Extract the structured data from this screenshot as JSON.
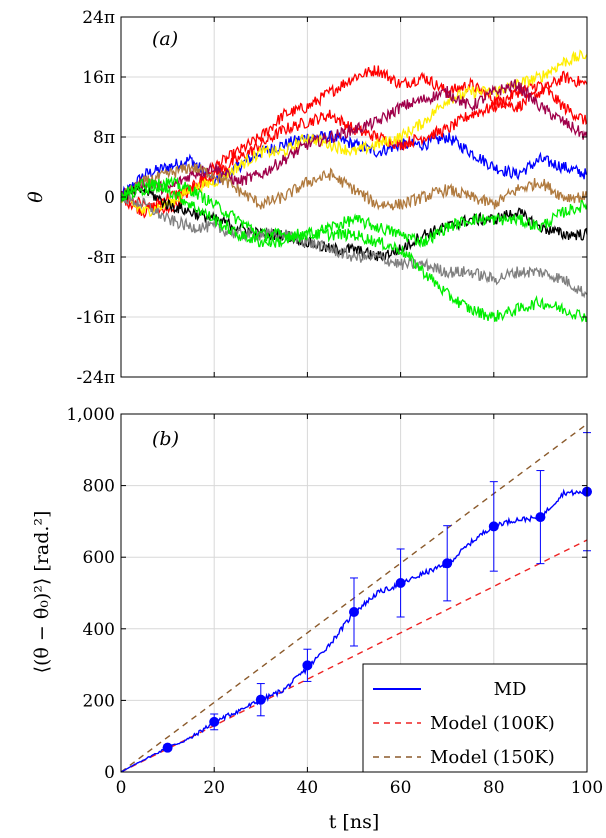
{
  "chart_data": [
    {
      "type": "line",
      "panel_label": "(a)",
      "xlabel": "",
      "ylabel": "θ",
      "xlim": [
        0,
        100
      ],
      "ylim_pi": [
        -24,
        24
      ],
      "grid": true,
      "yticks": [
        "24π",
        "16π",
        "8π",
        "0",
        "-8π",
        "-16π",
        "-24π"
      ],
      "series": [
        {
          "color": "#0000ff",
          "x": [
            0,
            5,
            10,
            15,
            20,
            25,
            30,
            35,
            40,
            45,
            50,
            55,
            60,
            65,
            70,
            75,
            80,
            85,
            90,
            95,
            100
          ],
          "y": [
            0,
            3,
            4,
            5,
            2,
            4,
            6,
            7,
            8,
            8,
            7,
            6,
            7,
            7,
            8,
            6,
            4,
            3,
            5,
            4,
            3
          ]
        },
        {
          "color": "#ff0000",
          "x": [
            0,
            5,
            10,
            15,
            20,
            25,
            30,
            35,
            40,
            45,
            50,
            55,
            60,
            65,
            70,
            75,
            80,
            85,
            90,
            95,
            100
          ],
          "y": [
            0,
            -2,
            0,
            1,
            4,
            6,
            8,
            11,
            12,
            14,
            16,
            17,
            15,
            16,
            14,
            15,
            13,
            12,
            14,
            16,
            15
          ]
        },
        {
          "color": "#ff0000",
          "x": [
            0,
            5,
            10,
            15,
            20,
            25,
            30,
            35,
            40,
            45,
            50,
            55,
            60,
            65,
            70,
            75,
            80,
            85,
            90,
            95,
            100
          ],
          "y": [
            0,
            -1,
            -2,
            1,
            3,
            5,
            7,
            9,
            10,
            11,
            9,
            8,
            7,
            8,
            9,
            11,
            12,
            14,
            15,
            12,
            10
          ]
        },
        {
          "color": "#ffee00",
          "x": [
            0,
            5,
            10,
            15,
            20,
            25,
            30,
            35,
            40,
            45,
            50,
            55,
            60,
            65,
            70,
            75,
            80,
            85,
            90,
            95,
            100
          ],
          "y": [
            0,
            -2,
            -1,
            1,
            2,
            4,
            6,
            6,
            8,
            7,
            6,
            7,
            8,
            10,
            13,
            14,
            14,
            15,
            16,
            18,
            19
          ]
        },
        {
          "color": "#a0004a",
          "x": [
            0,
            5,
            10,
            15,
            20,
            25,
            30,
            35,
            40,
            45,
            50,
            55,
            60,
            65,
            70,
            75,
            80,
            85,
            90,
            95,
            100
          ],
          "y": [
            0,
            2,
            1,
            3,
            4,
            2,
            3,
            5,
            7,
            8,
            9,
            10,
            12,
            13,
            14,
            12,
            14,
            15,
            12,
            10,
            8
          ]
        },
        {
          "color": "#b07a3e",
          "x": [
            0,
            5,
            10,
            15,
            20,
            25,
            30,
            35,
            40,
            45,
            50,
            55,
            60,
            65,
            70,
            75,
            80,
            85,
            90,
            95,
            100
          ],
          "y": [
            0,
            2,
            3,
            4,
            3,
            1,
            -1,
            0,
            2,
            3,
            1,
            -1,
            -1,
            0,
            1,
            0,
            -1,
            1,
            2,
            0,
            0
          ]
        },
        {
          "color": "#000000",
          "x": [
            0,
            5,
            10,
            15,
            20,
            25,
            30,
            35,
            40,
            45,
            50,
            55,
            60,
            65,
            70,
            75,
            80,
            85,
            90,
            95,
            100
          ],
          "y": [
            0,
            1,
            -1,
            -2,
            -3,
            -4,
            -5,
            -5,
            -6,
            -7,
            -7,
            -8,
            -7,
            -5,
            -4,
            -3,
            -3,
            -2,
            -4,
            -5,
            -5
          ]
        },
        {
          "color": "#808080",
          "x": [
            0,
            5,
            10,
            15,
            20,
            25,
            30,
            35,
            40,
            45,
            50,
            55,
            60,
            65,
            70,
            75,
            80,
            85,
            90,
            95,
            100
          ],
          "y": [
            0,
            -1,
            -3,
            -4,
            -4,
            -5,
            -5,
            -5,
            -6,
            -7,
            -8,
            -8,
            -9,
            -9,
            -10,
            -10,
            -11,
            -10,
            -10,
            -11,
            -13
          ]
        },
        {
          "color": "#00ee00",
          "x": [
            0,
            5,
            10,
            15,
            20,
            25,
            30,
            35,
            40,
            45,
            50,
            55,
            60,
            65,
            70,
            75,
            80,
            85,
            90,
            95,
            100
          ],
          "y": [
            0,
            1,
            2,
            1,
            -1,
            -3,
            -5,
            -5,
            -5,
            -5,
            -5,
            -6,
            -7,
            -10,
            -13,
            -15,
            -16,
            -15,
            -14,
            -15,
            -16
          ]
        },
        {
          "color": "#00ee00",
          "x": [
            0,
            5,
            10,
            15,
            20,
            25,
            30,
            35,
            40,
            45,
            50,
            55,
            60,
            65,
            70,
            75,
            80,
            85,
            90,
            95,
            100
          ],
          "y": [
            0,
            2,
            1,
            -1,
            -3,
            -5,
            -6,
            -6,
            -5,
            -4,
            -3,
            -4,
            -5,
            -6,
            -4,
            -3,
            -3,
            -3,
            -4,
            -2,
            -1
          ]
        }
      ]
    },
    {
      "type": "line",
      "panel_label": "(b)",
      "xlabel": "t [ns]",
      "ylabel": "⟨(θ − θ₀)²⟩ [rad.²]",
      "xlim": [
        0,
        100
      ],
      "ylim": [
        0,
        1000
      ],
      "grid": true,
      "yticks": [
        "0",
        "200",
        "400",
        "600",
        "800",
        "1,000"
      ],
      "xticks": [
        "0",
        "20",
        "40",
        "60",
        "80",
        "100"
      ],
      "legend_position": "bottom-right",
      "series": [
        {
          "name": "MD",
          "color": "#0000ff",
          "x": [
            0,
            5,
            10,
            15,
            20,
            25,
            30,
            35,
            40,
            45,
            50,
            55,
            60,
            65,
            70,
            75,
            80,
            85,
            90,
            95,
            100
          ],
          "y": [
            0,
            35,
            68,
            95,
            140,
            170,
            200,
            230,
            290,
            360,
            445,
            500,
            525,
            555,
            580,
            640,
            690,
            705,
            710,
            780,
            780
          ],
          "points": {
            "x": [
              10,
              20,
              30,
              40,
              50,
              60,
              70,
              80,
              90,
              100
            ],
            "y": [
              68,
              140,
              202,
              298,
              447,
              528,
              583,
              686,
              712,
              783
            ],
            "err": [
              8,
              22,
              45,
              45,
              95,
              95,
              105,
              125,
              130,
              165
            ]
          }
        },
        {
          "name": "Model (100K)",
          "color": "#ee2222",
          "dashed": true,
          "x": [
            0,
            100
          ],
          "y": [
            0,
            648
          ]
        },
        {
          "name": "Model (150K)",
          "color": "#8b5a2b",
          "dashed": true,
          "x": [
            0,
            100
          ],
          "y": [
            0,
            972
          ]
        }
      ]
    }
  ]
}
